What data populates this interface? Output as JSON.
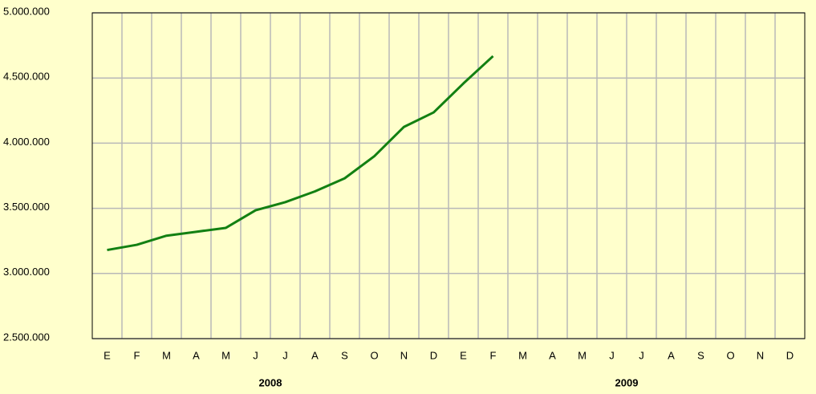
{
  "chart_data": {
    "type": "line",
    "categories": [
      "E",
      "F",
      "M",
      "A",
      "M",
      "J",
      "J",
      "A",
      "S",
      "O",
      "N",
      "D",
      "E",
      "F",
      "M",
      "A",
      "M",
      "J",
      "J",
      "A",
      "S",
      "O",
      "N",
      "D"
    ],
    "groups": [
      "2008",
      "2009"
    ],
    "series": [
      {
        "name": "",
        "color": "#128012",
        "values": [
          3180000,
          3220000,
          3290000,
          3320000,
          3350000,
          3485000,
          3547000,
          3630000,
          3730000,
          3900000,
          4125000,
          4236000,
          4458000,
          4668000,
          null,
          null,
          null,
          null,
          null,
          null,
          null,
          null,
          null,
          null
        ]
      }
    ],
    "ylim": [
      2500000,
      5000000
    ],
    "yticks": [
      {
        "value": 2500000,
        "label": "2.500.000"
      },
      {
        "value": 3000000,
        "label": "3.000.000"
      },
      {
        "value": 3500000,
        "label": "3.500.000"
      },
      {
        "value": 4000000,
        "label": "4.000.000"
      },
      {
        "value": 4500000,
        "label": "4.500.000"
      },
      {
        "value": 5000000,
        "label": "5.000.000"
      }
    ],
    "grid": true
  }
}
